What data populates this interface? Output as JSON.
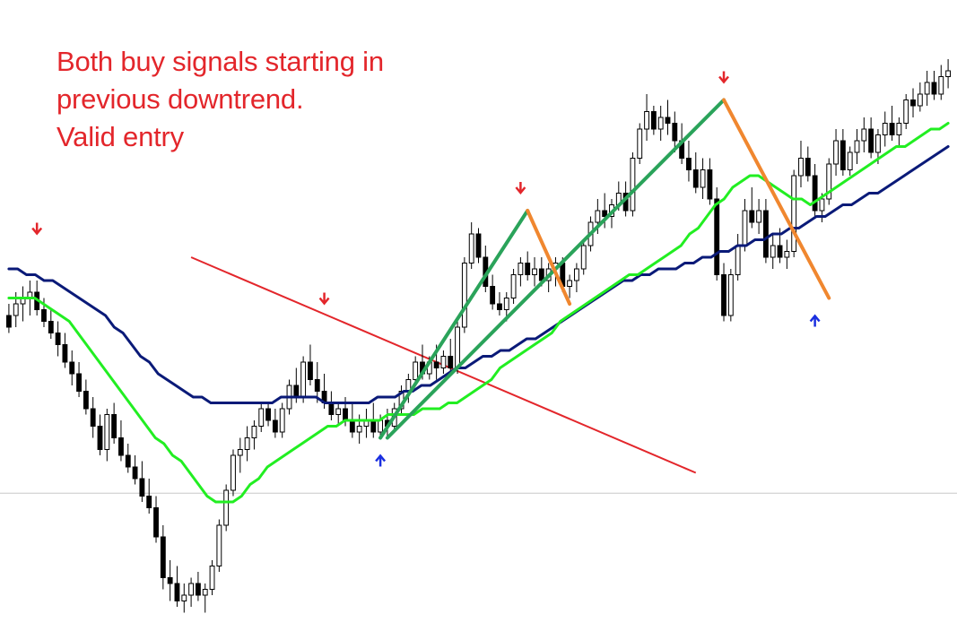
{
  "colors": {
    "background": "#ffffff",
    "candle_up": "#ffffff",
    "candle_down": "#000000",
    "ma_fast": "#22ee22",
    "ma_slow": "#0a1a78",
    "trendline": "#e3262b",
    "buy_leg": "#2aa35a",
    "sell_leg": "#f0872f",
    "sell_arrow": "#e3262b",
    "buy_arrow": "#1a2fe0",
    "annotation": "#e3262b",
    "horizontal_level": "#c8c8c8"
  },
  "annotation": {
    "lines": [
      "Both buy signals starting in",
      "previous downtrend.",
      "Valid entry"
    ]
  },
  "chart_data": {
    "type": "candlestick",
    "title": "",
    "xlabel": "",
    "ylabel": "",
    "grid": false,
    "price_range": [
      0,
      100
    ],
    "horizontal_level": 21.5,
    "candles": [
      [
        52,
        54,
        49,
        50
      ],
      [
        52,
        56,
        50,
        54
      ],
      [
        54,
        57,
        51,
        55
      ],
      [
        55,
        58,
        52,
        56
      ],
      [
        56,
        58,
        52,
        53
      ],
      [
        53,
        55,
        50,
        51
      ],
      [
        51,
        53,
        48,
        49
      ],
      [
        49,
        51,
        45,
        47
      ],
      [
        47,
        49,
        43,
        44
      ],
      [
        44,
        46,
        40,
        42
      ],
      [
        42,
        44,
        38,
        39
      ],
      [
        39,
        41,
        35,
        36
      ],
      [
        36,
        38,
        31,
        33
      ],
      [
        33,
        35,
        28,
        29
      ],
      [
        29,
        36,
        27,
        35
      ],
      [
        35,
        37,
        30,
        31
      ],
      [
        31,
        34,
        27,
        28
      ],
      [
        28,
        30,
        25,
        26
      ],
      [
        26,
        28,
        23,
        24
      ],
      [
        24,
        27,
        20,
        21
      ],
      [
        21,
        24,
        18,
        19
      ],
      [
        19,
        21,
        13,
        14
      ],
      [
        14,
        16,
        5,
        7
      ],
      [
        7,
        10,
        3,
        6
      ],
      [
        6,
        9,
        2,
        3
      ],
      [
        3,
        6,
        1,
        4
      ],
      [
        4,
        7,
        2,
        6
      ],
      [
        6,
        8,
        3,
        4
      ],
      [
        4,
        6,
        1,
        5
      ],
      [
        5,
        10,
        4,
        9
      ],
      [
        9,
        17,
        8,
        16
      ],
      [
        16,
        23,
        15,
        22
      ],
      [
        22,
        29,
        21,
        28
      ],
      [
        28,
        31,
        25,
        29
      ],
      [
        29,
        33,
        27,
        31
      ],
      [
        31,
        34,
        29,
        33
      ],
      [
        33,
        37,
        32,
        36
      ],
      [
        36,
        37,
        33,
        34
      ],
      [
        34,
        36,
        31,
        32
      ],
      [
        32,
        37,
        31,
        36
      ],
      [
        36,
        41,
        35,
        40
      ],
      [
        40,
        43,
        37,
        38
      ],
      [
        38,
        45,
        37,
        44
      ],
      [
        44,
        47,
        40,
        41
      ],
      [
        41,
        44,
        37,
        39
      ],
      [
        39,
        42,
        36,
        37
      ],
      [
        37,
        39,
        34,
        35
      ],
      [
        35,
        37,
        33,
        36
      ],
      [
        36,
        38,
        33,
        34
      ],
      [
        34,
        37,
        31,
        32
      ],
      [
        32,
        35,
        30,
        33
      ],
      [
        33,
        36,
        31,
        34
      ],
      [
        34,
        37,
        31,
        32
      ],
      [
        32,
        35,
        31,
        34
      ],
      [
        34,
        36,
        31,
        33
      ],
      [
        33,
        37,
        32,
        36
      ],
      [
        36,
        40,
        35,
        39
      ],
      [
        39,
        42,
        37,
        41
      ],
      [
        41,
        45,
        40,
        44
      ],
      [
        44,
        47,
        41,
        42
      ],
      [
        42,
        45,
        41,
        44
      ],
      [
        44,
        47,
        41,
        43
      ],
      [
        43,
        46,
        42,
        45
      ],
      [
        45,
        48,
        42,
        43
      ],
      [
        43,
        51,
        42,
        50
      ],
      [
        50,
        62,
        49,
        61
      ],
      [
        61,
        68,
        60,
        66
      ],
      [
        66,
        67,
        61,
        62
      ],
      [
        62,
        64,
        56,
        57
      ],
      [
        57,
        59,
        53,
        54
      ],
      [
        54,
        56,
        52,
        53
      ],
      [
        53,
        56,
        51,
        55
      ],
      [
        55,
        60,
        54,
        59
      ],
      [
        59,
        62,
        57,
        61
      ],
      [
        61,
        63,
        58,
        59
      ],
      [
        59,
        62,
        57,
        60
      ],
      [
        60,
        62,
        57,
        58
      ],
      [
        58,
        61,
        56,
        60
      ],
      [
        60,
        62,
        57,
        61
      ],
      [
        61,
        62,
        56,
        57
      ],
      [
        57,
        59,
        55,
        58
      ],
      [
        58,
        61,
        56,
        60
      ],
      [
        60,
        65,
        59,
        64
      ],
      [
        64,
        69,
        63,
        68
      ],
      [
        68,
        72,
        66,
        70
      ],
      [
        70,
        73,
        67,
        69
      ],
      [
        69,
        72,
        67,
        71
      ],
      [
        71,
        75,
        70,
        73
      ],
      [
        73,
        75,
        69,
        70
      ],
      [
        70,
        80,
        69,
        79
      ],
      [
        79,
        85,
        78,
        84
      ],
      [
        84,
        90,
        82,
        87
      ],
      [
        87,
        88,
        83,
        84
      ],
      [
        84,
        88,
        82,
        86
      ],
      [
        86,
        89,
        83,
        85
      ],
      [
        85,
        87,
        80,
        82
      ],
      [
        82,
        85,
        78,
        79
      ],
      [
        79,
        82,
        75,
        77
      ],
      [
        77,
        80,
        73,
        74
      ],
      [
        74,
        79,
        72,
        77
      ],
      [
        77,
        79,
        71,
        72
      ],
      [
        72,
        74,
        58,
        59
      ],
      [
        59,
        61,
        51,
        52
      ],
      [
        52,
        60,
        51,
        59
      ],
      [
        59,
        66,
        58,
        64
      ],
      [
        64,
        72,
        63,
        70
      ],
      [
        70,
        74,
        67,
        68
      ],
      [
        68,
        72,
        66,
        70
      ],
      [
        70,
        72,
        61,
        62
      ],
      [
        62,
        66,
        60,
        64
      ],
      [
        64,
        67,
        61,
        62
      ],
      [
        62,
        65,
        60,
        63
      ],
      [
        63,
        77,
        62,
        76
      ],
      [
        76,
        82,
        74,
        79
      ],
      [
        79,
        81,
        75,
        76
      ],
      [
        76,
        78,
        69,
        70
      ],
      [
        70,
        73,
        68,
        72
      ],
      [
        72,
        79,
        71,
        78
      ],
      [
        78,
        84,
        76,
        82
      ],
      [
        82,
        84,
        76,
        77
      ],
      [
        77,
        81,
        76,
        80
      ],
      [
        80,
        84,
        78,
        82
      ],
      [
        82,
        86,
        80,
        84
      ],
      [
        84,
        86,
        79,
        80
      ],
      [
        80,
        84,
        78,
        83
      ],
      [
        83,
        87,
        81,
        85
      ],
      [
        85,
        88,
        82,
        83
      ],
      [
        83,
        86,
        81,
        85
      ],
      [
        85,
        90,
        84,
        89
      ],
      [
        89,
        91,
        86,
        88
      ],
      [
        88,
        92,
        87,
        90
      ],
      [
        90,
        94,
        88,
        92
      ],
      [
        92,
        94,
        89,
        90
      ],
      [
        90,
        95,
        89,
        93
      ],
      [
        93,
        96,
        91,
        94
      ]
    ],
    "ma_fast": [
      55,
      55,
      55,
      55,
      54,
      53,
      52,
      51,
      49,
      47,
      45,
      43,
      41,
      39,
      37,
      35,
      33,
      31,
      30,
      28,
      27,
      25,
      23,
      21,
      20,
      20,
      20,
      21,
      23,
      24,
      26,
      27,
      28,
      29,
      30,
      31,
      32,
      33,
      33,
      34,
      34,
      34,
      34,
      34,
      35,
      35,
      35,
      35,
      36,
      36,
      36,
      37,
      37,
      38,
      39,
      40,
      41,
      43,
      44,
      45,
      46,
      47,
      48,
      49,
      51,
      52,
      53,
      54,
      55,
      56,
      57,
      58,
      59,
      59,
      60,
      61,
      62,
      63,
      64,
      66,
      67,
      69,
      71,
      72,
      74,
      75,
      76,
      76,
      75,
      74,
      73,
      72,
      72,
      71,
      72,
      73,
      74,
      75,
      76,
      77,
      78,
      79,
      80,
      81,
      81,
      82,
      83,
      84,
      84,
      85
    ],
    "ma_slow": [
      60,
      60,
      59,
      59,
      58,
      58,
      57,
      56,
      55,
      54,
      53,
      52,
      50,
      49,
      47,
      45,
      44,
      42,
      41,
      40,
      39,
      38,
      38,
      37,
      37,
      37,
      37,
      37,
      37,
      37,
      37,
      38,
      38,
      38,
      38,
      38,
      37,
      37,
      37,
      37,
      37,
      37,
      38,
      38,
      38,
      39,
      39,
      40,
      40,
      41,
      42,
      43,
      43,
      44,
      45,
      45,
      46,
      46,
      47,
      48,
      48,
      49,
      50,
      51,
      52,
      53,
      54,
      55,
      56,
      57,
      58,
      58,
      59,
      59,
      60,
      60,
      60,
      61,
      61,
      62,
      62,
      63,
      63,
      64,
      64,
      65,
      65,
      66,
      66,
      67,
      67,
      68,
      69,
      69,
      70,
      71,
      71,
      72,
      73,
      73,
      74,
      75,
      76,
      77,
      78,
      79,
      80,
      81
    ],
    "trendline": {
      "from": [
        26,
        62
      ],
      "to": [
        98,
        25
      ]
    },
    "buy_legs": [
      {
        "from": [
          53,
          31
        ],
        "to": [
          74,
          70
        ]
      },
      {
        "from": [
          54,
          31
        ],
        "to": [
          102,
          89
        ]
      }
    ],
    "sell_legs": [
      {
        "from": [
          74,
          70
        ],
        "to": [
          80,
          54
        ]
      },
      {
        "from": [
          102,
          89
        ],
        "to": [
          117,
          55
        ]
      }
    ],
    "signals": [
      {
        "type": "sell",
        "x": 4,
        "y": 67
      },
      {
        "type": "sell",
        "x": 45,
        "y": 55
      },
      {
        "type": "sell",
        "x": 73,
        "y": 74
      },
      {
        "type": "sell",
        "x": 102,
        "y": 93
      },
      {
        "type": "buy",
        "x": 53,
        "y": 27
      },
      {
        "type": "buy",
        "x": 115,
        "y": 51
      }
    ]
  }
}
